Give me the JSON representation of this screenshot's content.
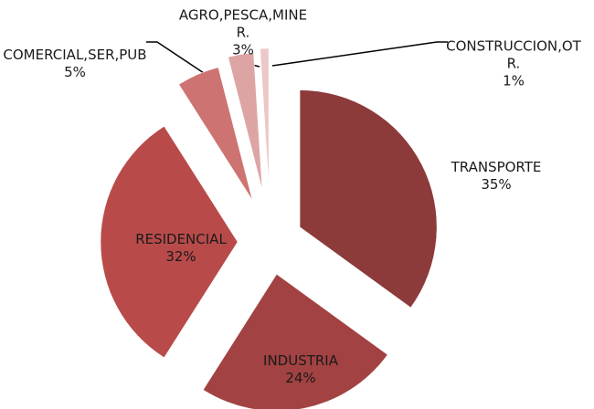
{
  "chart_data": {
    "type": "pie",
    "categories": [
      "TRANSPORTE",
      "INDUSTRIA",
      "RESIDENCIAL",
      "COMERCIAL,SER,PUB",
      "AGRO,PESCA,MINER.",
      "CONSTRUCCION,OTR."
    ],
    "values": [
      35,
      24,
      32,
      5,
      3,
      1
    ],
    "value_labels": [
      "35%",
      "24%",
      "32%",
      "5%",
      "3%",
      "1%"
    ],
    "colors": [
      "#8c3a3a",
      "#a24242",
      "#b84b4a",
      "#cd7371",
      "#dca5a4",
      "#ebc7c6"
    ]
  }
}
